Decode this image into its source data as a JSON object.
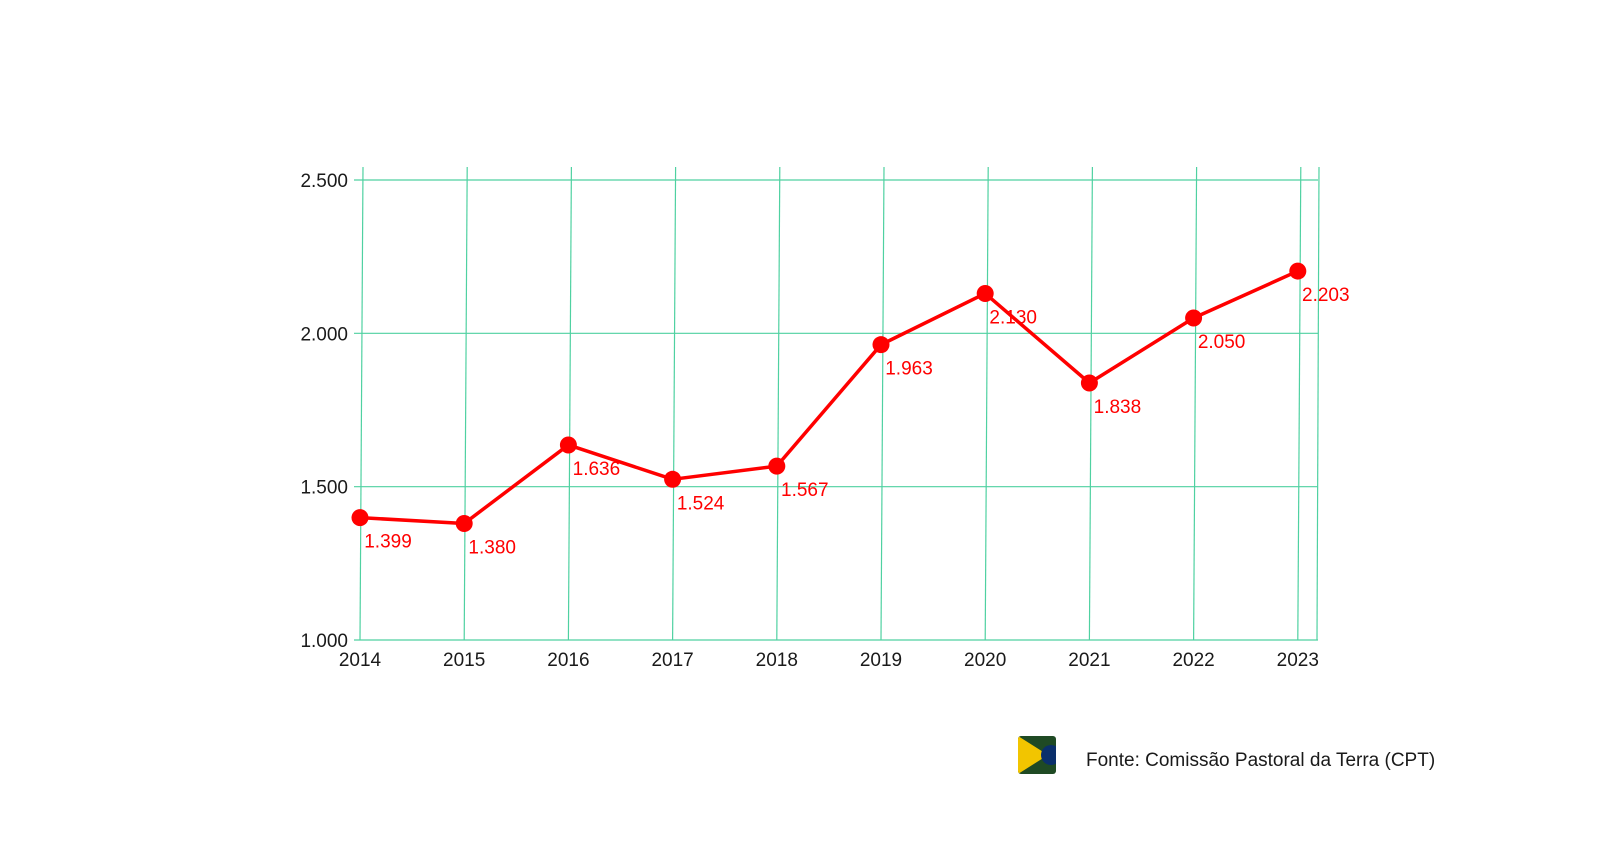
{
  "chart_data": {
    "type": "line",
    "categories": [
      "2014",
      "2015",
      "2016",
      "2017",
      "2018",
      "2019",
      "2020",
      "2021",
      "2022",
      "2023"
    ],
    "series": [
      {
        "values": [
          1399,
          1380,
          1636,
          1524,
          1567,
          1963,
          2130,
          1838,
          2050,
          2203
        ],
        "labels": [
          "1.399",
          "1.380",
          "1.636",
          "1.524",
          "1.567",
          "1.963",
          "2.130",
          "1.838",
          "2.050",
          "2.203"
        ]
      }
    ],
    "ylim": [
      1000,
      2500
    ],
    "yticks": [
      1000,
      1500,
      2000,
      2500
    ],
    "ytick_labels": [
      "1.000",
      "1.500",
      "2.000",
      "2.500"
    ],
    "grid": true,
    "colors": {
      "line": "#ff0000",
      "grid": "#4fd1a1",
      "axis_text": "#1a1a1a"
    }
  },
  "footer": {
    "source": "Fonte: Comissão Pastoral da Terra (CPT)",
    "flag_icon": "brazil-flag-icon"
  }
}
